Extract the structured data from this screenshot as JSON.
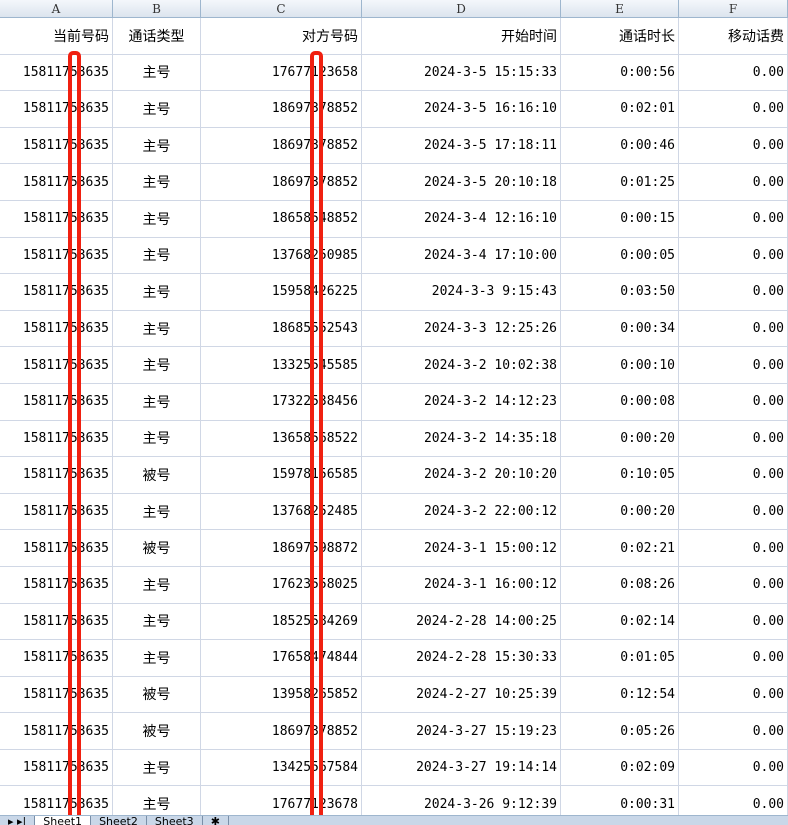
{
  "columns": [
    "A",
    "B",
    "C",
    "D",
    "E",
    "F"
  ],
  "headers": [
    "当前号码",
    "通话类型",
    "对方号码",
    "开始时间",
    "通话时长",
    "移动话费"
  ],
  "rows": [
    [
      "15811753635",
      "主号",
      "17677123658",
      "2024-3-5 15:15:33",
      "0:00:56",
      "0.00"
    ],
    [
      "15811753635",
      "主号",
      "18697378852",
      "2024-3-5 16:16:10",
      "0:02:01",
      "0.00"
    ],
    [
      "15811753635",
      "主号",
      "18697378852",
      "2024-3-5 17:18:11",
      "0:00:46",
      "0.00"
    ],
    [
      "15811753635",
      "主号",
      "18697378852",
      "2024-3-5 20:10:18",
      "0:01:25",
      "0.00"
    ],
    [
      "15811753635",
      "主号",
      "18658548852",
      "2024-3-4 12:16:10",
      "0:00:15",
      "0.00"
    ],
    [
      "15811753635",
      "主号",
      "13768250985",
      "2024-3-4 17:10:00",
      "0:00:05",
      "0.00"
    ],
    [
      "15811753635",
      "主号",
      "15958426225",
      "2024-3-3 9:15:43",
      "0:03:50",
      "0.00"
    ],
    [
      "15811753635",
      "主号",
      "18685552543",
      "2024-3-3 12:25:26",
      "0:00:34",
      "0.00"
    ],
    [
      "15811753635",
      "主号",
      "13325545585",
      "2024-3-2 10:02:38",
      "0:00:10",
      "0.00"
    ],
    [
      "15811753635",
      "主号",
      "17322538456",
      "2024-3-2 14:12:23",
      "0:00:08",
      "0.00"
    ],
    [
      "15811753635",
      "主号",
      "13658568522",
      "2024-3-2 14:35:18",
      "0:00:20",
      "0.00"
    ],
    [
      "15811753635",
      "被号",
      "15978156585",
      "2024-3-2 20:10:20",
      "0:10:05",
      "0.00"
    ],
    [
      "15811753635",
      "主号",
      "13768252485",
      "2024-3-2 22:00:12",
      "0:00:20",
      "0.00"
    ],
    [
      "15811753635",
      "被号",
      "18697598872",
      "2024-3-1 15:00:12",
      "0:02:21",
      "0.00"
    ],
    [
      "15811753635",
      "主号",
      "17623558025",
      "2024-3-1 16:00:12",
      "0:08:26",
      "0.00"
    ],
    [
      "15811753635",
      "主号",
      "18525584269",
      "2024-2-28 14:00:25",
      "0:02:14",
      "0.00"
    ],
    [
      "15811753635",
      "主号",
      "17658474844",
      "2024-2-28 15:30:33",
      "0:01:05",
      "0.00"
    ],
    [
      "15811753635",
      "被号",
      "13958265852",
      "2024-2-27 10:25:39",
      "0:12:54",
      "0.00"
    ],
    [
      "15811753635",
      "被号",
      "18697378852",
      "2024-3-27 15:19:23",
      "0:05:26",
      "0.00"
    ],
    [
      "15811753635",
      "主号",
      "13425567584",
      "2024-3-27 19:14:14",
      "0:02:09",
      "0.00"
    ],
    [
      "15811753635",
      "主号",
      "17677123678",
      "2024-3-26 9:12:39",
      "0:00:31",
      "0.00"
    ]
  ],
  "sheets": [
    "Sheet1",
    "Sheet2",
    "Sheet3"
  ],
  "redaction_color": "#f02010"
}
